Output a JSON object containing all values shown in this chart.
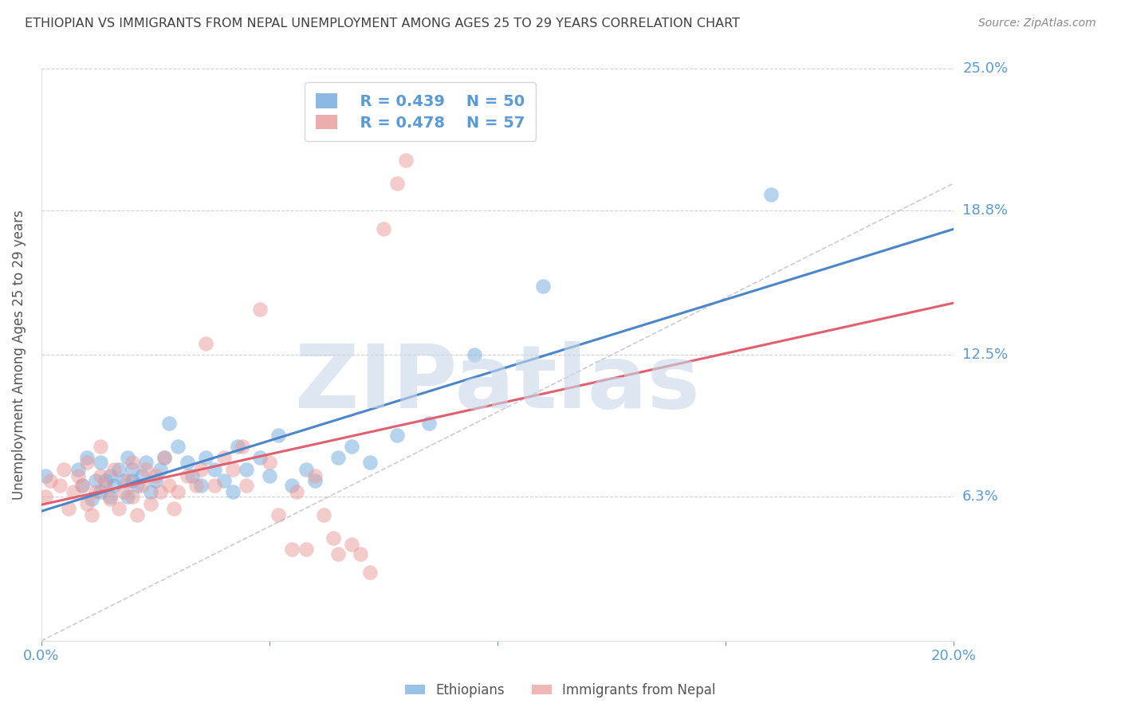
{
  "title": "ETHIOPIAN VS IMMIGRANTS FROM NEPAL UNEMPLOYMENT AMONG AGES 25 TO 29 YEARS CORRELATION CHART",
  "source": "Source: ZipAtlas.com",
  "ylabel": "Unemployment Among Ages 25 to 29 years",
  "xlim": [
    0.0,
    0.2
  ],
  "ylim": [
    0.0,
    0.25
  ],
  "legend_blue_r": "R = 0.439",
  "legend_blue_n": "N = 50",
  "legend_pink_r": "R = 0.478",
  "legend_pink_n": "N = 57",
  "blue_color": "#6fa8dc",
  "pink_color": "#ea9999",
  "trend_blue": "#4a86c8",
  "trend_pink": "#e06070",
  "diagonal_color": "#c0c0c0",
  "watermark": "ZIPatlas",
  "watermark_color": "#c8d8e8",
  "background_color": "#ffffff",
  "grid_color": "#d0d0d0",
  "label_color": "#5b9bd5",
  "title_color": "#404040",
  "ethiopians_x": [
    0.001,
    0.008,
    0.009,
    0.01,
    0.011,
    0.012,
    0.013,
    0.013,
    0.014,
    0.015,
    0.015,
    0.016,
    0.017,
    0.018,
    0.019,
    0.019,
    0.02,
    0.02,
    0.021,
    0.022,
    0.023,
    0.024,
    0.025,
    0.026,
    0.027,
    0.028,
    0.03,
    0.032,
    0.033,
    0.035,
    0.036,
    0.038,
    0.04,
    0.042,
    0.043,
    0.045,
    0.048,
    0.05,
    0.052,
    0.055,
    0.058,
    0.06,
    0.065,
    0.068,
    0.072,
    0.078,
    0.085,
    0.095,
    0.11,
    0.16
  ],
  "ethiopians_y": [
    0.072,
    0.075,
    0.068,
    0.08,
    0.062,
    0.07,
    0.065,
    0.078,
    0.07,
    0.063,
    0.072,
    0.068,
    0.075,
    0.07,
    0.063,
    0.08,
    0.07,
    0.075,
    0.068,
    0.072,
    0.078,
    0.065,
    0.07,
    0.075,
    0.08,
    0.095,
    0.085,
    0.078,
    0.072,
    0.068,
    0.08,
    0.075,
    0.07,
    0.065,
    0.085,
    0.075,
    0.08,
    0.072,
    0.09,
    0.068,
    0.075,
    0.07,
    0.08,
    0.085,
    0.078,
    0.09,
    0.095,
    0.125,
    0.155,
    0.195
  ],
  "nepal_x": [
    0.001,
    0.002,
    0.004,
    0.005,
    0.006,
    0.007,
    0.008,
    0.009,
    0.01,
    0.01,
    0.011,
    0.012,
    0.013,
    0.013,
    0.014,
    0.015,
    0.016,
    0.017,
    0.018,
    0.019,
    0.02,
    0.02,
    0.021,
    0.022,
    0.023,
    0.024,
    0.025,
    0.026,
    0.027,
    0.028,
    0.029,
    0.03,
    0.032,
    0.034,
    0.035,
    0.036,
    0.038,
    0.04,
    0.042,
    0.044,
    0.045,
    0.048,
    0.05,
    0.052,
    0.055,
    0.056,
    0.058,
    0.06,
    0.062,
    0.064,
    0.065,
    0.068,
    0.07,
    0.072,
    0.075,
    0.078,
    0.08
  ],
  "nepal_y": [
    0.063,
    0.07,
    0.068,
    0.075,
    0.058,
    0.065,
    0.072,
    0.068,
    0.06,
    0.078,
    0.055,
    0.065,
    0.072,
    0.085,
    0.068,
    0.062,
    0.075,
    0.058,
    0.065,
    0.07,
    0.063,
    0.078,
    0.055,
    0.068,
    0.075,
    0.06,
    0.072,
    0.065,
    0.08,
    0.068,
    0.058,
    0.065,
    0.072,
    0.068,
    0.075,
    0.13,
    0.068,
    0.08,
    0.075,
    0.085,
    0.068,
    0.145,
    0.078,
    0.055,
    0.04,
    0.065,
    0.04,
    0.072,
    0.055,
    0.045,
    0.038,
    0.042,
    0.038,
    0.03,
    0.18,
    0.2,
    0.21
  ]
}
